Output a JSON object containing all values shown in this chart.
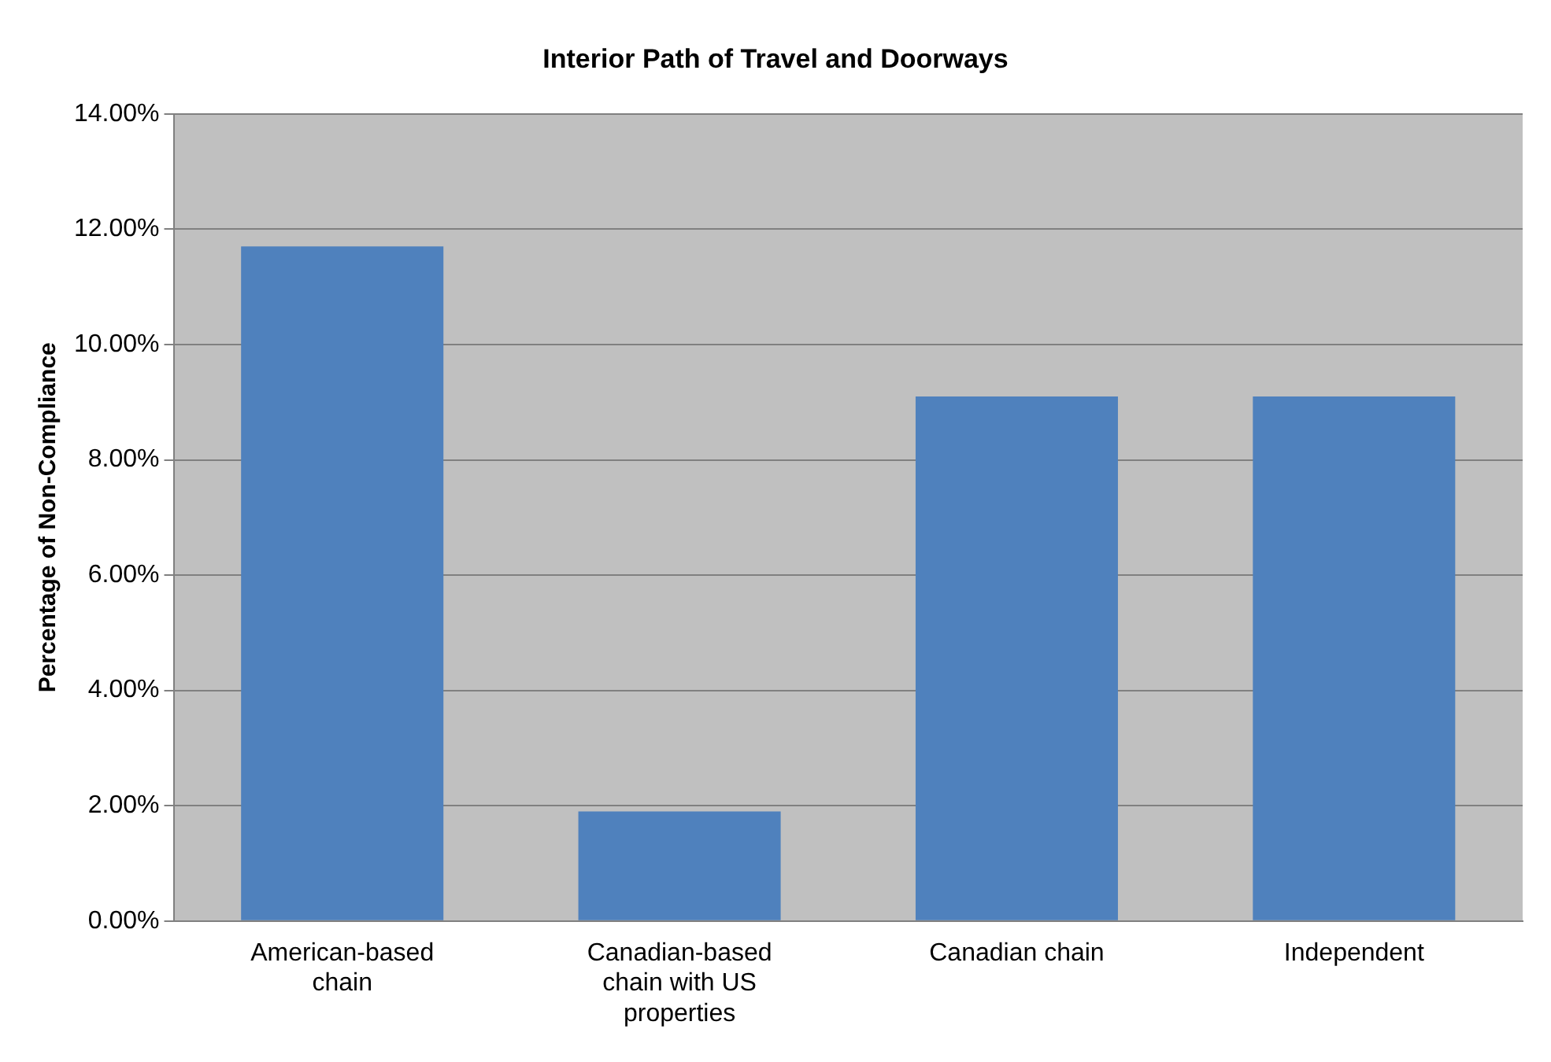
{
  "chart_data": {
    "type": "bar",
    "title": "Interior Path of Travel and Doorways",
    "ylabel": "Percentage of Non-Compliance",
    "categories": [
      "American-based chain",
      "Canadian-based chain with US properties",
      "Canadian chain",
      "Independent"
    ],
    "values": [
      11.7,
      1.9,
      9.1,
      9.1
    ],
    "color": "#4f81bd",
    "ylim": [
      0,
      14
    ],
    "yticks": [
      {
        "value": 0,
        "label": "0.00%"
      },
      {
        "value": 2,
        "label": "2.00%"
      },
      {
        "value": 4,
        "label": "4.00%"
      },
      {
        "value": 6,
        "label": "6.00%"
      },
      {
        "value": 8,
        "label": "8.00%"
      },
      {
        "value": 10,
        "label": "10.00%"
      },
      {
        "value": 12,
        "label": "12.00%"
      },
      {
        "value": 14,
        "label": "14.00%"
      }
    ],
    "grid": "y",
    "legend": false
  }
}
